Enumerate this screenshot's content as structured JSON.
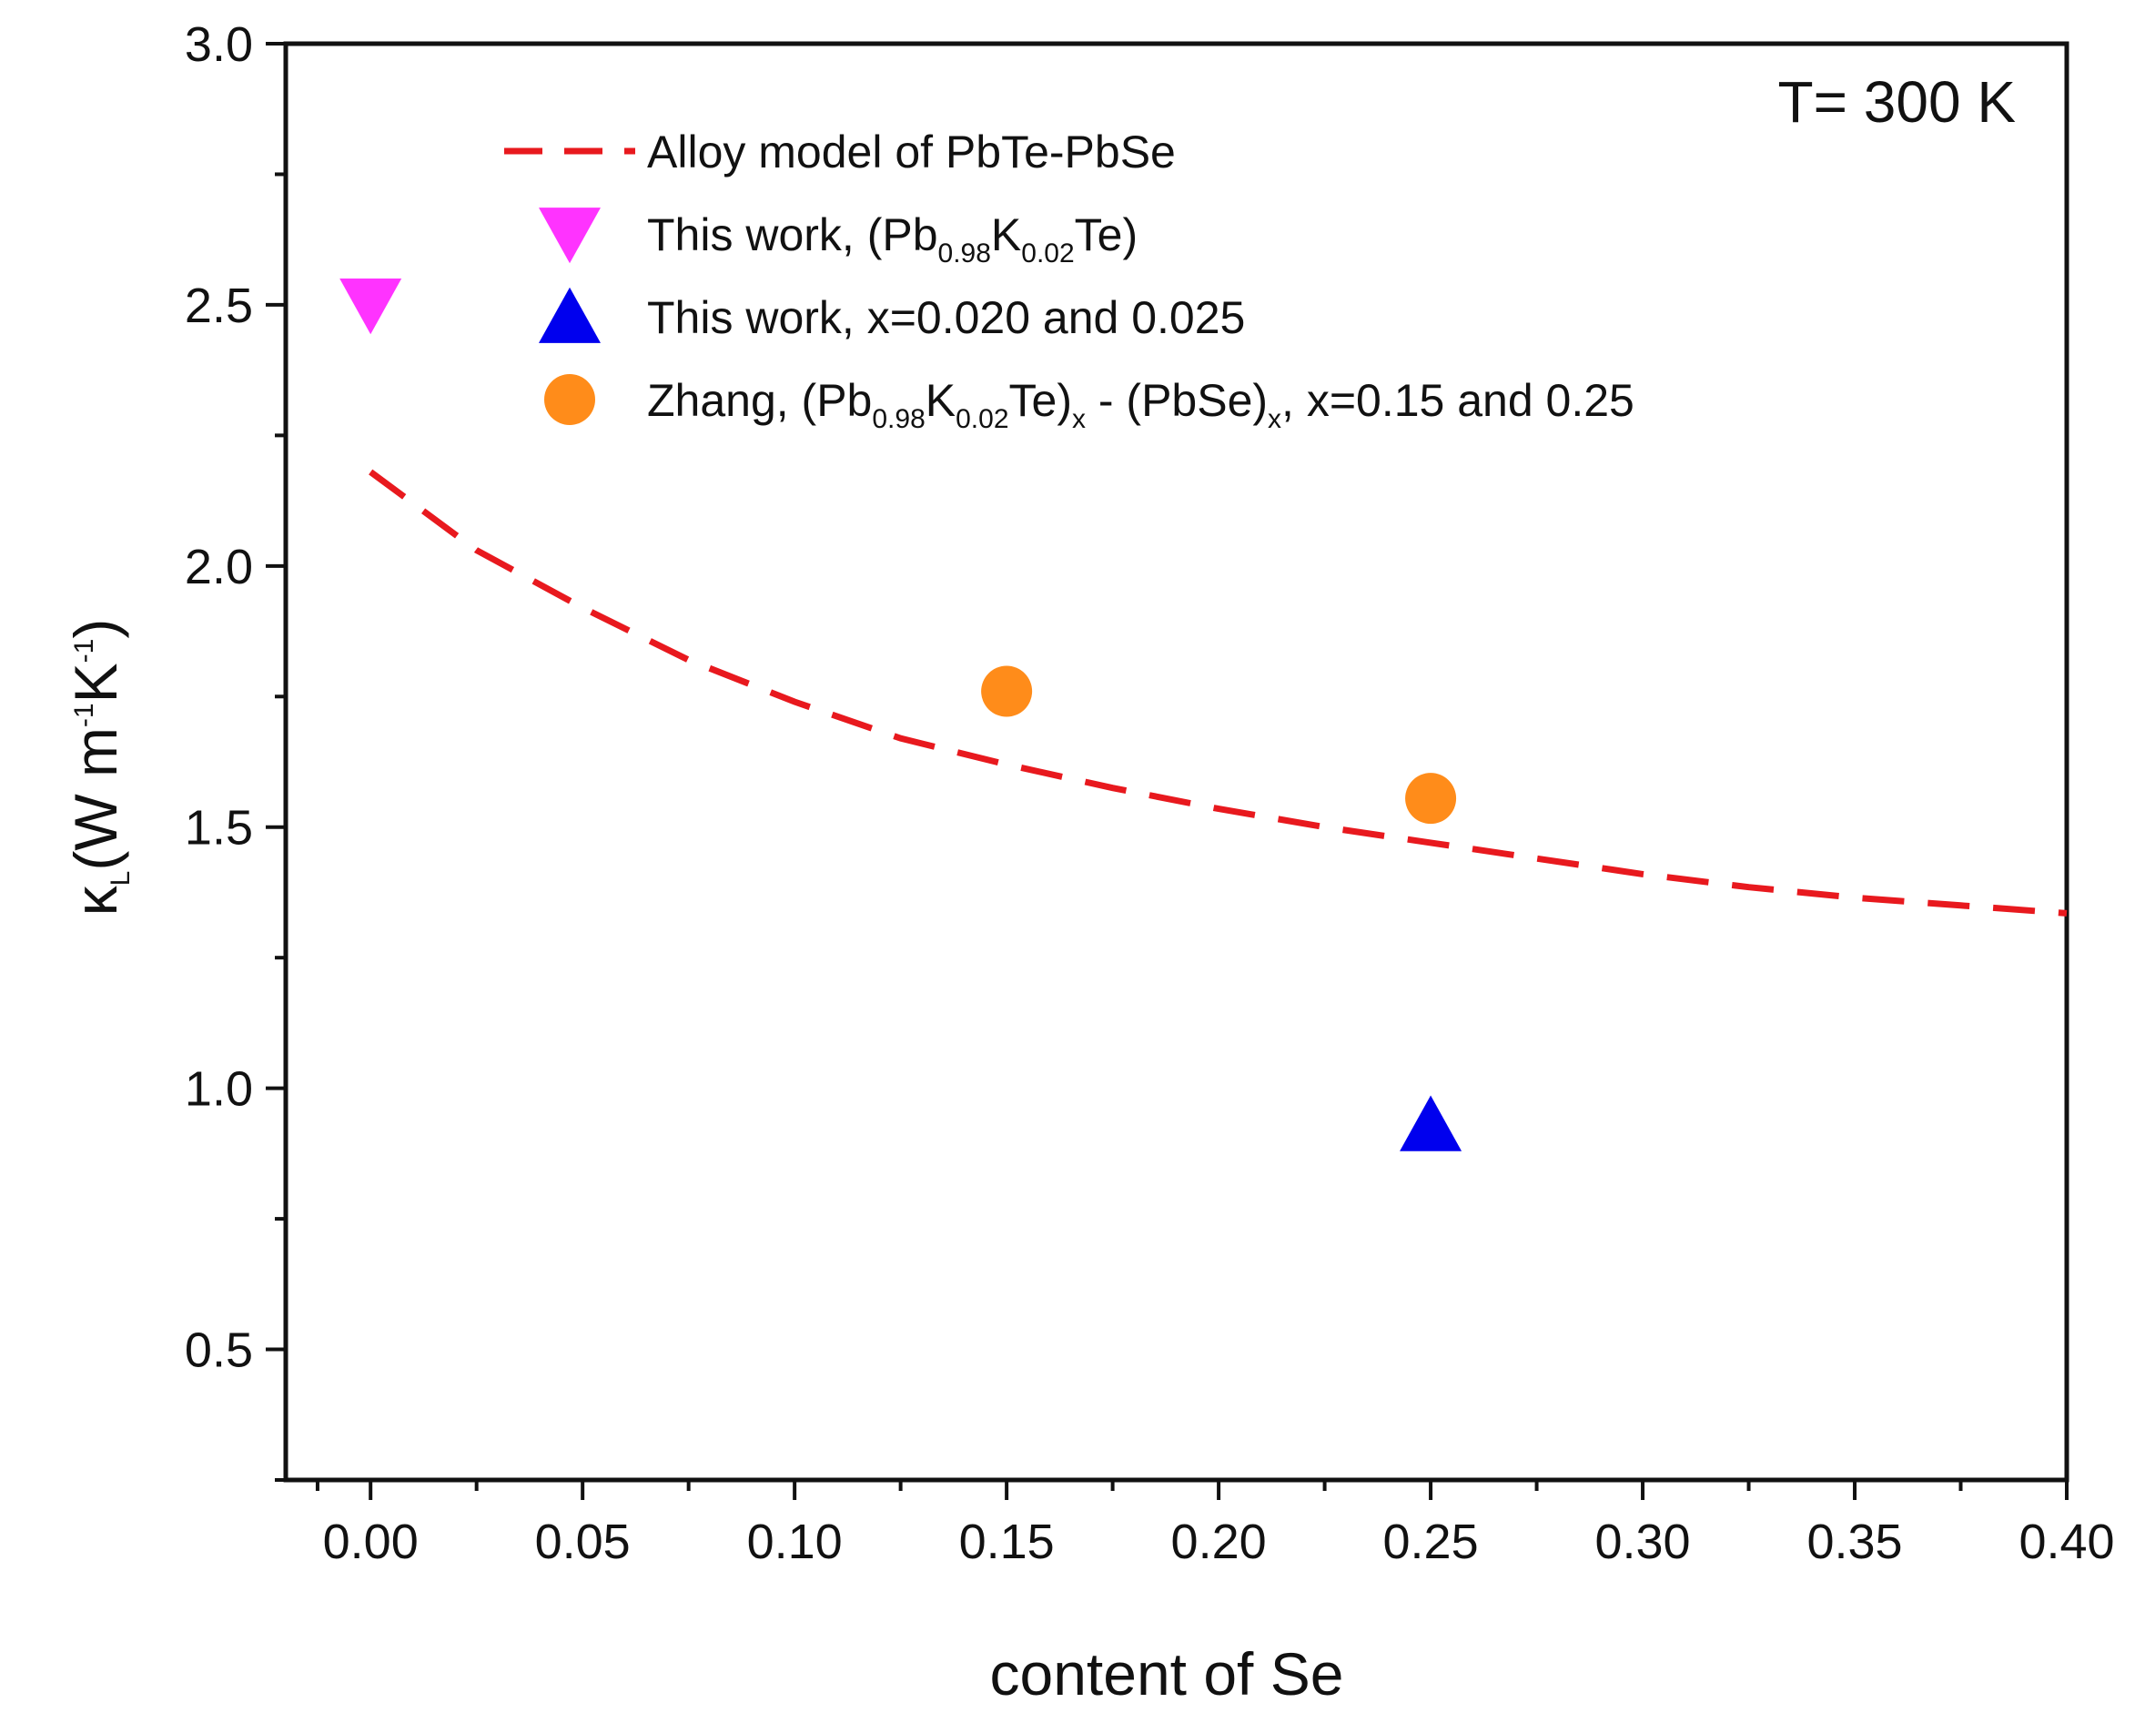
{
  "chart_data": {
    "type": "scatter",
    "xlabel": "content of Se",
    "ylabel": {
      "kappa": "κ",
      "kappa_sub": "L",
      "units_open": "(W m",
      "m_exp": "-1",
      "k": "K",
      "k_exp": "-1",
      "close": ")"
    },
    "xlim": [
      -0.02,
      0.4
    ],
    "ylim": [
      0.25,
      3.0
    ],
    "x_ticks": [
      "0.00",
      "0.05",
      "0.10",
      "0.15",
      "0.20",
      "0.25",
      "0.30",
      "0.35",
      "0.40"
    ],
    "y_ticks": [
      "0.5",
      "1.0",
      "1.5",
      "2.0",
      "2.5",
      "3.0"
    ],
    "annotation": "T= 300 K",
    "grid": false,
    "legend_position": "top",
    "series": [
      {
        "name": "Alloy model of PbTe-PbSe",
        "kind": "line",
        "style": "dashed",
        "color": "#e8191e",
        "x": [
          0.0,
          0.025,
          0.05,
          0.075,
          0.1,
          0.125,
          0.15,
          0.175,
          0.2,
          0.225,
          0.25,
          0.275,
          0.3,
          0.325,
          0.35,
          0.375,
          0.4
        ],
        "y": [
          2.18,
          2.03,
          1.92,
          1.82,
          1.74,
          1.67,
          1.62,
          1.575,
          1.535,
          1.5,
          1.47,
          1.44,
          1.41,
          1.385,
          1.365,
          1.35,
          1.335
        ]
      },
      {
        "name": "This work, (Pb0.98K0.02Te)",
        "kind": "marker",
        "marker": "triangle-down",
        "color": "#ff33ff",
        "x": [
          0.0
        ],
        "y": [
          2.5
        ]
      },
      {
        "name": "This work, x=0.020 and 0.025",
        "kind": "marker",
        "marker": "triangle-up",
        "color": "#0000ee",
        "x": [
          0.25
        ],
        "y": [
          0.93
        ]
      },
      {
        "name": "Zhang, (Pb0.98K0.02Te)x - (PbSe)x, x=0.15 and 0.25",
        "kind": "marker",
        "marker": "circle",
        "color": "#ff8c1a",
        "x": [
          0.15,
          0.25
        ],
        "y": [
          1.76,
          1.555
        ]
      }
    ],
    "legend": [
      {
        "series": 0,
        "parts": [
          {
            "t": "Alloy model of PbTe-PbSe"
          }
        ]
      },
      {
        "series": 1,
        "parts": [
          {
            "t": "This work, (Pb"
          },
          {
            "t": "0.98",
            "sub": true
          },
          {
            "t": "K"
          },
          {
            "t": "0.02",
            "sub": true
          },
          {
            "t": "Te)"
          }
        ]
      },
      {
        "series": 2,
        "parts": [
          {
            "t": "This work, x=0.020 and 0.025"
          }
        ]
      },
      {
        "series": 3,
        "parts": [
          {
            "t": "Zhang, (Pb"
          },
          {
            "t": "0.98",
            "sub": true
          },
          {
            "t": "K"
          },
          {
            "t": "0.02",
            "sub": true
          },
          {
            "t": "Te)"
          },
          {
            "t": "x",
            "sub": true
          },
          {
            "t": " - (PbSe)"
          },
          {
            "t": "x",
            "sub": true
          },
          {
            "t": ", x=0.15 and 0.25"
          }
        ]
      }
    ]
  }
}
